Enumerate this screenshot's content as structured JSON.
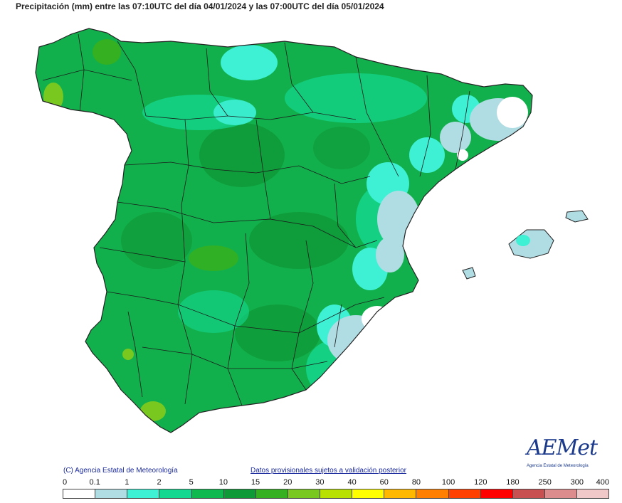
{
  "title": "Precipitación (mm) entre las 07:10UTC del día 04/01/2024 y las 07:00UTC del día 05/01/2024",
  "copyright": "(C) Agencia Estatal de Meteorología",
  "provisional_note": "Datos provisionales sujetos a validación posterior",
  "logo": {
    "text": "AEMet",
    "subtitle": "Agencia Estatal de Meteorología",
    "color": "#1b3a8c"
  },
  "legend": {
    "ticks": [
      "0",
      "0.1",
      "1",
      "2",
      "5",
      "10",
      "15",
      "20",
      "30",
      "40",
      "60",
      "80",
      "100",
      "120",
      "180",
      "250",
      "300",
      "400"
    ],
    "colors": [
      "#ffffff",
      "#b0dce4",
      "#3ef0d4",
      "#14d890",
      "#10b850",
      "#0f9a38",
      "#34b020",
      "#78c820",
      "#b8e000",
      "#ffff00",
      "#ffb800",
      "#ff8000",
      "#ff4000",
      "#ff0000",
      "#c85050",
      "#dc8c8c",
      "#f0c8c8"
    ]
  },
  "map": {
    "background_color": "#ffffff",
    "border_color": "#222222"
  }
}
